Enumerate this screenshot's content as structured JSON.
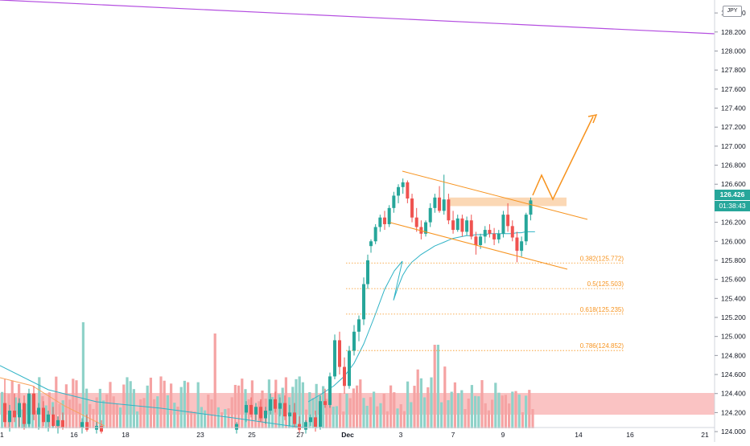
{
  "price_axis": {
    "currency": "JPY",
    "last_price": "126.426",
    "countdown": "01:38:43"
  },
  "fib_levels": [
    {
      "label": "0.382(125.772)",
      "price": 125.772
    },
    {
      "label": "0.5(125.503)",
      "price": 125.503
    },
    {
      "label": "0.618(125.235)",
      "price": 125.235
    },
    {
      "label": "0.786(124.852)",
      "price": 124.852
    }
  ],
  "colors": {
    "up": "#26a69a",
    "down": "#ef5350",
    "volume_up": "#8fd2c9",
    "volume_down": "#f5a3a3",
    "ma": "#2fb3c6",
    "channel": "#f7931e",
    "trendline": "#b44ee0",
    "zone_top": "#fbd4ad",
    "zone_bottom": "#f9b8b8"
  },
  "chart_data": {
    "type": "candlestick",
    "x_axis": {
      "tick_labels": [
        "1",
        "16",
        "18",
        "23",
        "25",
        "27",
        "Dec",
        "3",
        "7",
        "9",
        "14",
        "16",
        "21"
      ]
    },
    "y_axis": {
      "range": [
        123.95,
        128.45
      ],
      "tick_labels": [
        "128.400",
        "128.200",
        "128.000",
        "127.800",
        "127.600",
        "127.400",
        "127.200",
        "127.000",
        "126.800",
        "126.600",
        "126.400",
        "126.200",
        "126.000",
        "125.800",
        "125.600",
        "125.400",
        "125.200",
        "125.000",
        "124.800",
        "124.600",
        "124.400",
        "124.200",
        "124.000"
      ]
    },
    "candles": [
      {
        "o": 125.95,
        "h": 126.02,
        "l": 125.88,
        "c": 126.0
      },
      {
        "o": 126.0,
        "h": 126.18,
        "l": 125.97,
        "c": 126.15
      },
      {
        "o": 126.15,
        "h": 126.28,
        "l": 126.1,
        "c": 126.25
      },
      {
        "o": 126.25,
        "h": 126.32,
        "l": 126.12,
        "c": 126.18
      },
      {
        "o": 126.18,
        "h": 126.38,
        "l": 126.15,
        "c": 126.35
      },
      {
        "o": 126.35,
        "h": 126.52,
        "l": 126.3,
        "c": 126.48
      },
      {
        "o": 126.48,
        "h": 126.6,
        "l": 126.4,
        "c": 126.57
      },
      {
        "o": 126.57,
        "h": 126.66,
        "l": 126.5,
        "c": 126.62
      },
      {
        "o": 126.62,
        "h": 126.64,
        "l": 126.4,
        "c": 126.45
      },
      {
        "o": 126.45,
        "h": 126.5,
        "l": 126.2,
        "c": 126.25
      },
      {
        "o": 126.25,
        "h": 126.35,
        "l": 126.1,
        "c": 126.15
      },
      {
        "o": 126.15,
        "h": 126.22,
        "l": 126.02,
        "c": 126.08
      },
      {
        "o": 126.08,
        "h": 126.22,
        "l": 126.05,
        "c": 126.2
      },
      {
        "o": 126.2,
        "h": 126.4,
        "l": 126.15,
        "c": 126.35
      },
      {
        "o": 126.35,
        "h": 126.5,
        "l": 126.3,
        "c": 126.46
      },
      {
        "o": 126.46,
        "h": 126.58,
        "l": 126.3,
        "c": 126.32
      },
      {
        "o": 126.32,
        "h": 126.7,
        "l": 126.28,
        "c": 126.44
      },
      {
        "o": 126.44,
        "h": 126.5,
        "l": 126.18,
        "c": 126.22
      },
      {
        "o": 126.22,
        "h": 126.32,
        "l": 126.08,
        "c": 126.12
      },
      {
        "o": 126.12,
        "h": 126.28,
        "l": 126.1,
        "c": 126.24
      },
      {
        "o": 126.24,
        "h": 126.28,
        "l": 126.05,
        "c": 126.1
      },
      {
        "o": 126.1,
        "h": 126.26,
        "l": 126.06,
        "c": 126.22
      },
      {
        "o": 126.22,
        "h": 126.28,
        "l": 126.02,
        "c": 126.05
      },
      {
        "o": 126.05,
        "h": 126.1,
        "l": 125.86,
        "c": 125.96
      },
      {
        "o": 125.96,
        "h": 126.08,
        "l": 125.92,
        "c": 126.05
      },
      {
        "o": 126.05,
        "h": 126.16,
        "l": 125.98,
        "c": 126.12
      },
      {
        "o": 126.12,
        "h": 126.18,
        "l": 126.04,
        "c": 126.08
      },
      {
        "o": 126.08,
        "h": 126.14,
        "l": 125.96,
        "c": 126.02
      },
      {
        "o": 126.02,
        "h": 126.12,
        "l": 125.98,
        "c": 126.08
      },
      {
        "o": 126.08,
        "h": 126.32,
        "l": 126.04,
        "c": 126.28
      },
      {
        "o": 126.28,
        "h": 126.4,
        "l": 126.1,
        "c": 126.16
      },
      {
        "o": 126.16,
        "h": 126.22,
        "l": 126.0,
        "c": 126.04
      },
      {
        "o": 126.04,
        "h": 126.1,
        "l": 125.78,
        "c": 125.9
      },
      {
        "o": 125.9,
        "h": 126.05,
        "l": 125.84,
        "c": 126.0
      },
      {
        "o": 126.0,
        "h": 126.3,
        "l": 125.96,
        "c": 126.28
      },
      {
        "o": 126.28,
        "h": 126.46,
        "l": 126.22,
        "c": 126.43
      }
    ],
    "ma_series": [
      125.38,
      125.52,
      125.64,
      125.72,
      125.78,
      125.82,
      125.86,
      125.89,
      125.92,
      125.95,
      125.97,
      125.99,
      126.01,
      126.03,
      126.04,
      126.05,
      126.06,
      126.06,
      126.07,
      126.07,
      126.07,
      126.08,
      126.08,
      126.08,
      126.08,
      126.08,
      126.08,
      126.09,
      126.09,
      126.1,
      126.1,
      126.1,
      126.09,
      126.08,
      126.1,
      126.13
    ]
  }
}
